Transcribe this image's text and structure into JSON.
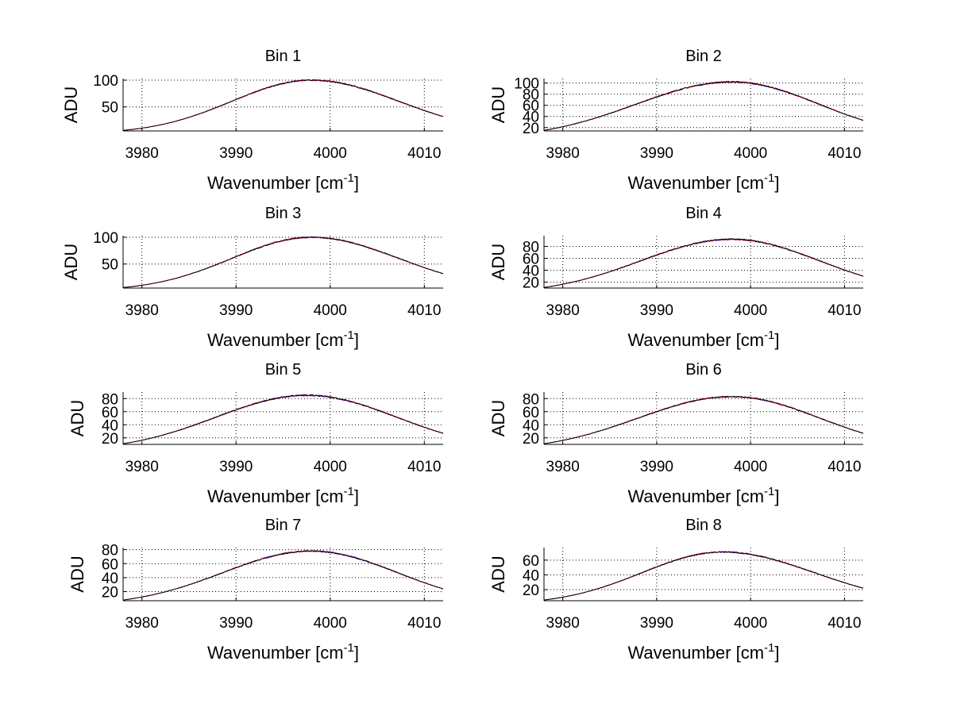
{
  "chart_data": [
    {
      "type": "line",
      "title": "Bin 1",
      "xlabel_main": "Wavenumber [cm",
      "xlabel_sup": "-1",
      "xlabel_end": "]",
      "ylabel": "ADU",
      "xlim": [
        3978,
        4012
      ],
      "ylim": [
        5,
        103
      ],
      "xticks": [
        3980,
        3990,
        4000,
        4010
      ],
      "yticks": [
        50,
        100
      ],
      "curve": {
        "start": 6,
        "peak": 100,
        "peak_x": 3998,
        "end": 32
      },
      "grid": true,
      "series": [
        {
          "name": "series 1",
          "color": "#0000ff"
        },
        {
          "name": "series 2",
          "color": "#ff0000"
        },
        {
          "name": "series 3",
          "color": "#000000"
        }
      ]
    },
    {
      "type": "line",
      "title": "Bin 2",
      "xlabel_main": "Wavenumber [cm",
      "xlabel_sup": "-1",
      "xlabel_end": "]",
      "ylabel": "ADU",
      "xlim": [
        3978,
        4012
      ],
      "ylim": [
        14,
        108
      ],
      "xticks": [
        3980,
        3990,
        4000,
        4010
      ],
      "yticks": [
        20,
        40,
        60,
        80,
        100
      ],
      "curve": {
        "start": 15,
        "peak": 102,
        "peak_x": 3998,
        "end": 33
      },
      "grid": true,
      "series": [
        {
          "name": "series 1",
          "color": "#0000ff"
        },
        {
          "name": "series 2",
          "color": "#ff0000"
        },
        {
          "name": "series 3",
          "color": "#000000"
        }
      ]
    },
    {
      "type": "line",
      "title": "Bin 3",
      "xlabel_main": "Wavenumber [cm",
      "xlabel_sup": "-1",
      "xlabel_end": "]",
      "ylabel": "ADU",
      "xlim": [
        3978,
        4012
      ],
      "ylim": [
        5,
        103
      ],
      "xticks": [
        3980,
        3990,
        4000,
        4010
      ],
      "yticks": [
        50,
        100
      ],
      "curve": {
        "start": 6,
        "peak": 100,
        "peak_x": 3998,
        "end": 32
      },
      "grid": true,
      "series": [
        {
          "name": "series 1",
          "color": "#0000ff"
        },
        {
          "name": "series 2",
          "color": "#ff0000"
        },
        {
          "name": "series 3",
          "color": "#000000"
        }
      ]
    },
    {
      "type": "line",
      "title": "Bin 4",
      "xlabel_main": "Wavenumber [cm",
      "xlabel_sup": "-1",
      "xlabel_end": "]",
      "ylabel": "ADU",
      "xlim": [
        3978,
        4012
      ],
      "ylim": [
        10,
        98
      ],
      "xticks": [
        3980,
        3990,
        4000,
        4010
      ],
      "yticks": [
        20,
        40,
        60,
        80
      ],
      "curve": {
        "start": 11,
        "peak": 92,
        "peak_x": 3998,
        "end": 30
      },
      "grid": true,
      "series": [
        {
          "name": "series 1",
          "color": "#0000ff"
        },
        {
          "name": "series 2",
          "color": "#ff0000"
        },
        {
          "name": "series 3",
          "color": "#000000"
        }
      ]
    },
    {
      "type": "line",
      "title": "Bin 5",
      "xlabel_main": "Wavenumber [cm",
      "xlabel_sup": "-1",
      "xlabel_end": "]",
      "ylabel": "ADU",
      "xlim": [
        3978,
        4012
      ],
      "ylim": [
        10,
        90
      ],
      "xticks": [
        3980,
        3990,
        4000,
        4010
      ],
      "yticks": [
        20,
        40,
        60,
        80
      ],
      "curve": {
        "start": 11,
        "peak": 85,
        "peak_x": 3997.5,
        "end": 27
      },
      "grid": true,
      "series": [
        {
          "name": "series 1",
          "color": "#0000ff"
        },
        {
          "name": "series 2",
          "color": "#ff0000"
        },
        {
          "name": "series 3",
          "color": "#000000"
        }
      ]
    },
    {
      "type": "line",
      "title": "Bin 6",
      "xlabel_main": "Wavenumber [cm",
      "xlabel_sup": "-1",
      "xlabel_end": "]",
      "ylabel": "ADU",
      "xlim": [
        3978,
        4012
      ],
      "ylim": [
        10,
        90
      ],
      "xticks": [
        3980,
        3990,
        4000,
        4010
      ],
      "yticks": [
        20,
        40,
        60,
        80
      ],
      "curve": {
        "start": 11,
        "peak": 83,
        "peak_x": 3998,
        "end": 27
      },
      "grid": true,
      "series": [
        {
          "name": "series 1",
          "color": "#0000ff"
        },
        {
          "name": "series 2",
          "color": "#ff0000"
        },
        {
          "name": "series 3",
          "color": "#000000"
        }
      ]
    },
    {
      "type": "line",
      "title": "Bin 7",
      "xlabel_main": "Wavenumber [cm",
      "xlabel_sup": "-1",
      "xlabel_end": "]",
      "ylabel": "ADU",
      "xlim": [
        3978,
        4012
      ],
      "ylim": [
        7,
        83
      ],
      "xticks": [
        3980,
        3990,
        4000,
        4010
      ],
      "yticks": [
        20,
        40,
        60,
        80
      ],
      "curve": {
        "start": 8,
        "peak": 78,
        "peak_x": 3998,
        "end": 24
      },
      "grid": true,
      "series": [
        {
          "name": "series 1",
          "color": "#0000ff"
        },
        {
          "name": "series 2",
          "color": "#ff0000"
        },
        {
          "name": "series 3",
          "color": "#000000"
        }
      ]
    },
    {
      "type": "line",
      "title": "Bin 8",
      "xlabel_main": "Wavenumber [cm",
      "xlabel_sup": "-1",
      "xlabel_end": "]",
      "ylabel": "ADU",
      "xlim": [
        3978,
        4012
      ],
      "ylim": [
        5,
        77
      ],
      "xticks": [
        3980,
        3990,
        4000,
        4010
      ],
      "yticks": [
        20,
        40,
        60
      ],
      "curve": {
        "start": 6,
        "peak": 71,
        "peak_x": 3997,
        "end": 22
      },
      "grid": true,
      "series": [
        {
          "name": "series 1",
          "color": "#0000ff"
        },
        {
          "name": "series 2",
          "color": "#ff0000"
        },
        {
          "name": "series 3",
          "color": "#000000"
        }
      ]
    }
  ]
}
